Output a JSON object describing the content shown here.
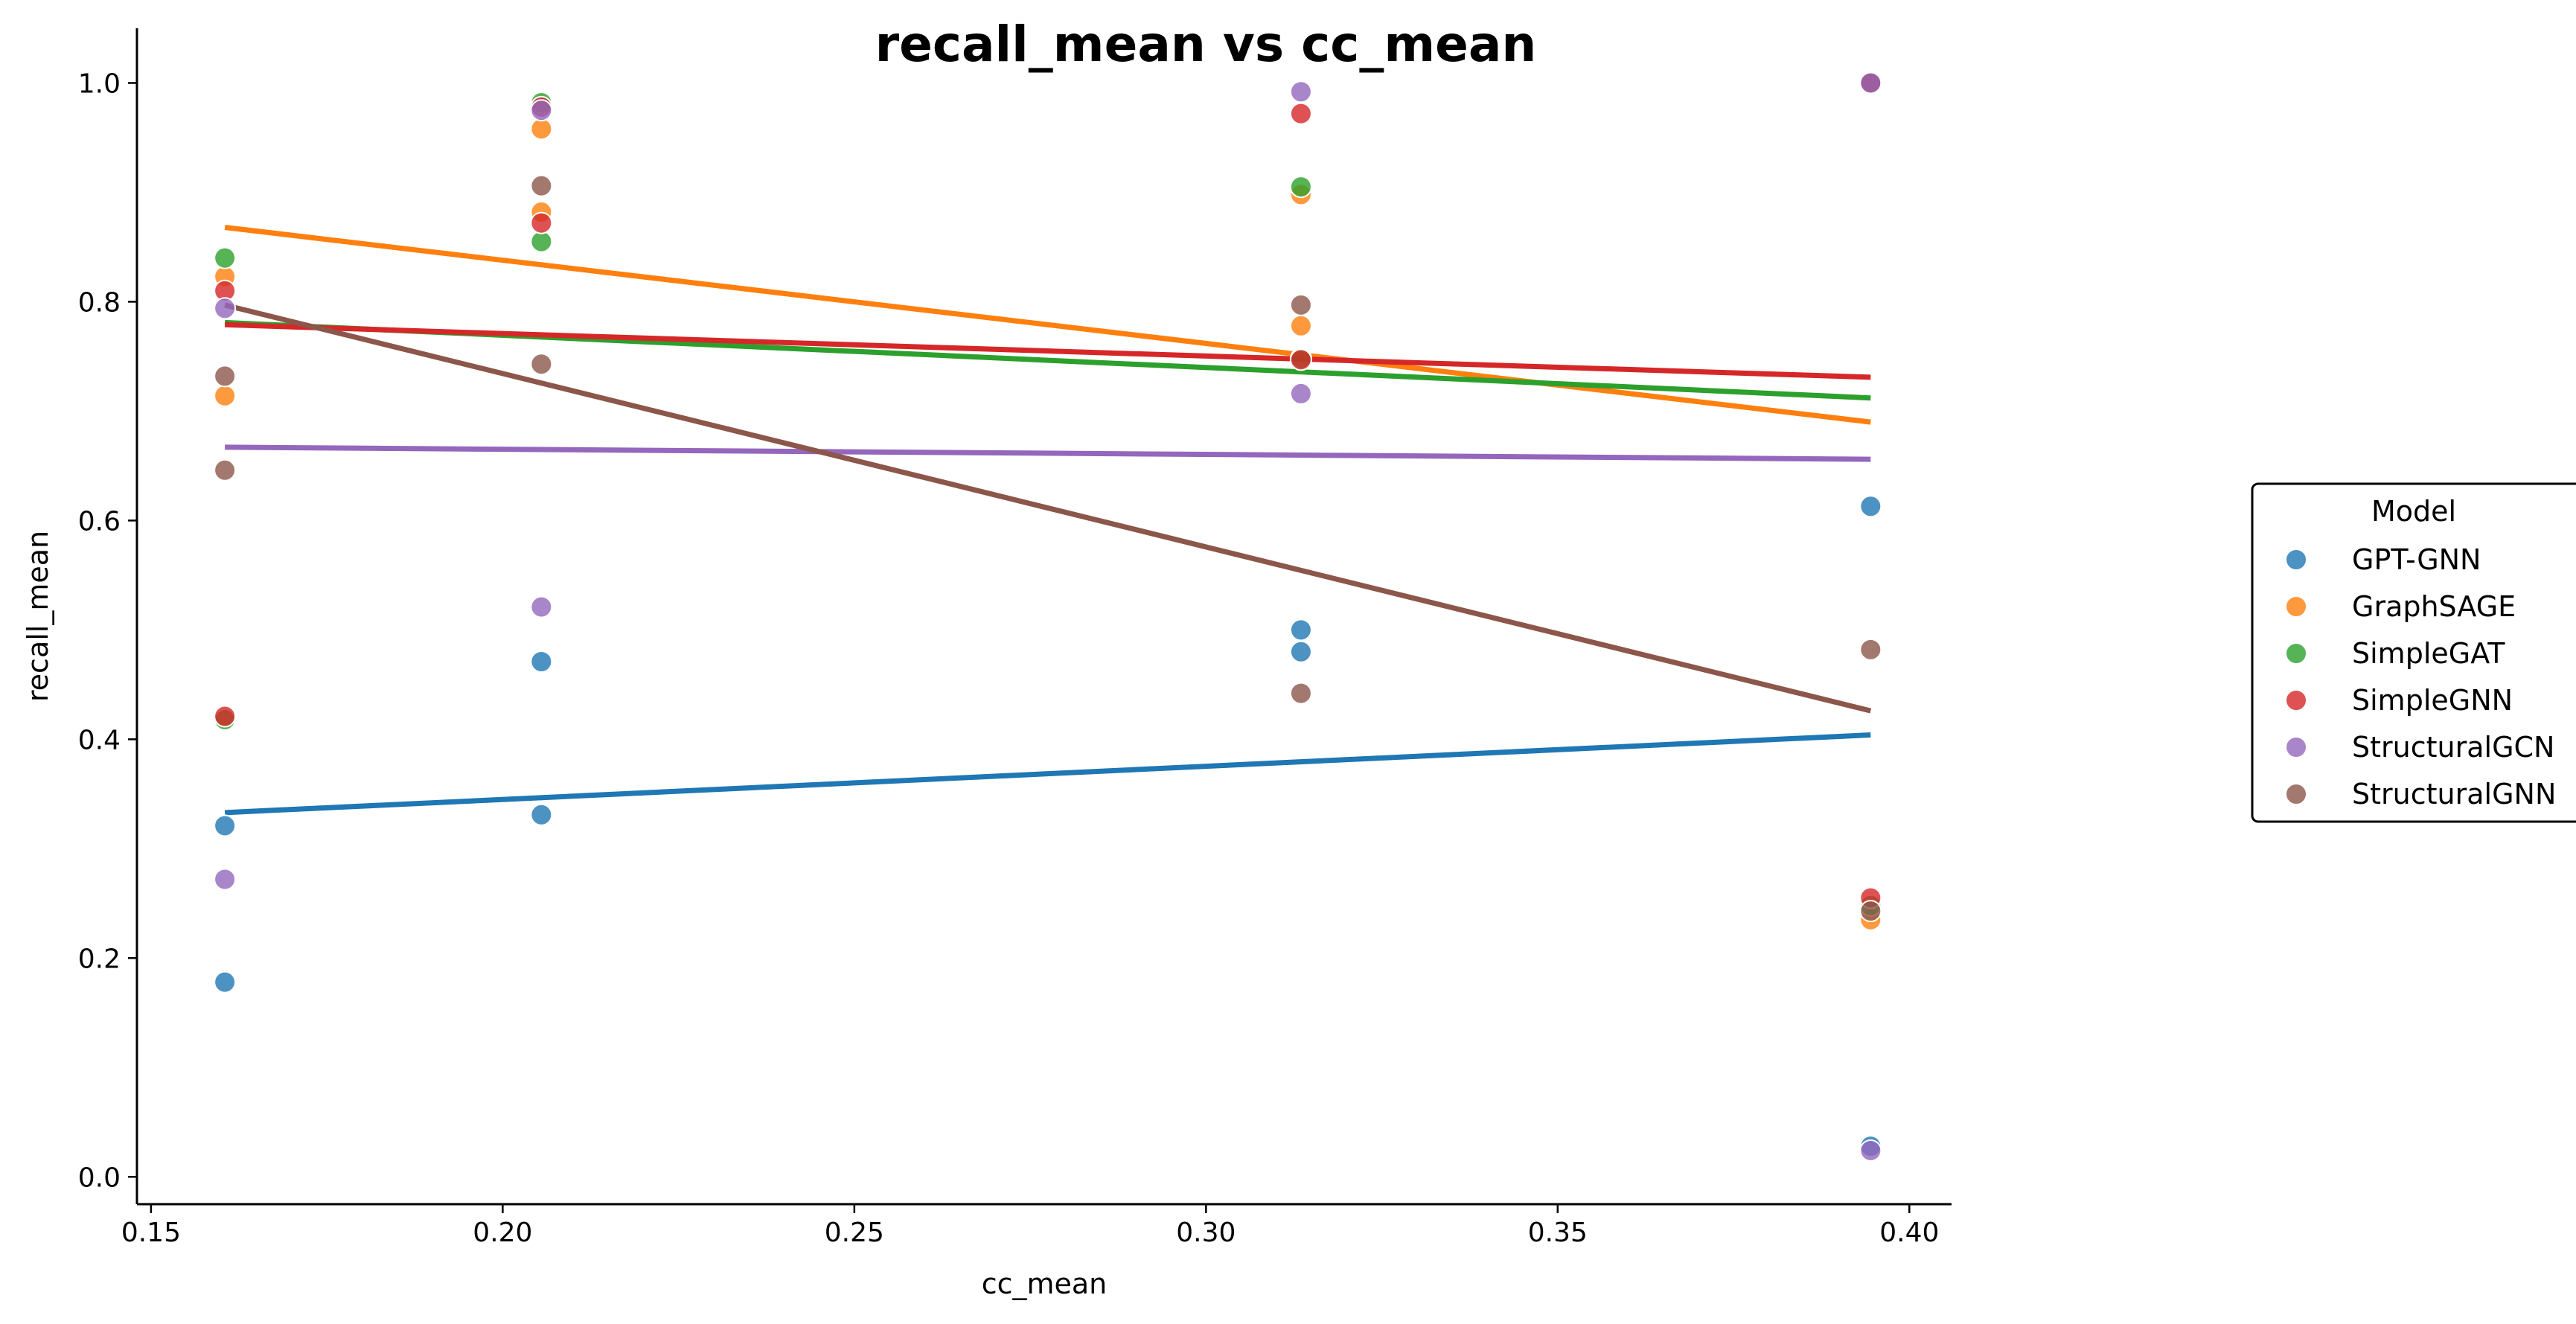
{
  "chart_data": {
    "type": "scatter",
    "title": "recall_mean vs cc_mean",
    "xlabel": "cc_mean",
    "ylabel": "recall_mean",
    "xlim": [
      0.148,
      0.406
    ],
    "ylim": [
      -0.025,
      1.05
    ],
    "xticks": [
      "0.15",
      "0.20",
      "0.25",
      "0.30",
      "0.35",
      "0.40"
    ],
    "yticks": [
      "0.0",
      "0.2",
      "0.4",
      "0.6",
      "0.8",
      "1.0"
    ],
    "grid": false,
    "legend": {
      "title": "Model",
      "placement": "right"
    },
    "series": [
      {
        "name": "GPT-GNN",
        "color": "#1f77b4",
        "points": [
          [
            0.1605,
            0.178
          ],
          [
            0.1605,
            0.321
          ],
          [
            0.2055,
            0.471
          ],
          [
            0.2055,
            0.331
          ],
          [
            0.3135,
            0.5
          ],
          [
            0.3135,
            0.48
          ],
          [
            0.3945,
            0.613
          ],
          [
            0.3945,
            0.028
          ]
        ],
        "fit": [
          [
            0.1605,
            0.333
          ],
          [
            0.3945,
            0.404
          ]
        ]
      },
      {
        "name": "GraphSAGE",
        "color": "#ff7f0e",
        "points": [
          [
            0.1605,
            0.823
          ],
          [
            0.1605,
            0.714
          ],
          [
            0.2055,
            0.958
          ],
          [
            0.2055,
            0.882
          ],
          [
            0.3135,
            0.898
          ],
          [
            0.3135,
            0.778
          ],
          [
            0.3945,
            0.235
          ],
          [
            0.3945,
            1.0
          ]
        ],
        "fit": [
          [
            0.1605,
            0.868
          ],
          [
            0.3945,
            0.69
          ]
        ]
      },
      {
        "name": "SimpleGAT",
        "color": "#2ca02c",
        "points": [
          [
            0.1605,
            0.84
          ],
          [
            0.1605,
            0.418
          ],
          [
            0.2055,
            0.982
          ],
          [
            0.2055,
            0.855
          ],
          [
            0.3135,
            0.905
          ],
          [
            0.3135,
            0.748
          ],
          [
            0.3945,
            0.248
          ],
          [
            0.3945,
            1.0
          ]
        ],
        "fit": [
          [
            0.1605,
            0.781
          ],
          [
            0.3945,
            0.712
          ]
        ]
      },
      {
        "name": "SimpleGNN",
        "color": "#d62728",
        "points": [
          [
            0.1605,
            0.81
          ],
          [
            0.1605,
            0.421
          ],
          [
            0.2055,
            0.872
          ],
          [
            0.2055,
            0.978
          ],
          [
            0.3135,
            0.972
          ],
          [
            0.3135,
            0.747
          ],
          [
            0.3945,
            0.255
          ],
          [
            0.3945,
            1.0
          ]
        ],
        "fit": [
          [
            0.1605,
            0.779
          ],
          [
            0.3945,
            0.731
          ]
        ]
      },
      {
        "name": "StructuralGCN",
        "color": "#9467bd",
        "points": [
          [
            0.1605,
            0.794
          ],
          [
            0.1605,
            0.272
          ],
          [
            0.2055,
            0.521
          ],
          [
            0.2055,
            0.975
          ],
          [
            0.3135,
            0.992
          ],
          [
            0.3135,
            0.716
          ],
          [
            0.3945,
            0.024
          ],
          [
            0.3945,
            1.0
          ]
        ],
        "fit": [
          [
            0.1605,
            0.667
          ],
          [
            0.3945,
            0.656
          ]
        ]
      },
      {
        "name": "StructuralGNN",
        "color": "#8c564b",
        "points": [
          [
            0.1605,
            0.732
          ],
          [
            0.1605,
            0.646
          ],
          [
            0.2055,
            0.906
          ],
          [
            0.2055,
            0.743
          ],
          [
            0.3135,
            0.797
          ],
          [
            0.3135,
            0.442
          ],
          [
            0.3945,
            0.482
          ],
          [
            0.3945,
            0.243
          ]
        ],
        "fit": [
          [
            0.1605,
            0.797
          ],
          [
            0.3945,
            0.426
          ]
        ]
      }
    ]
  }
}
